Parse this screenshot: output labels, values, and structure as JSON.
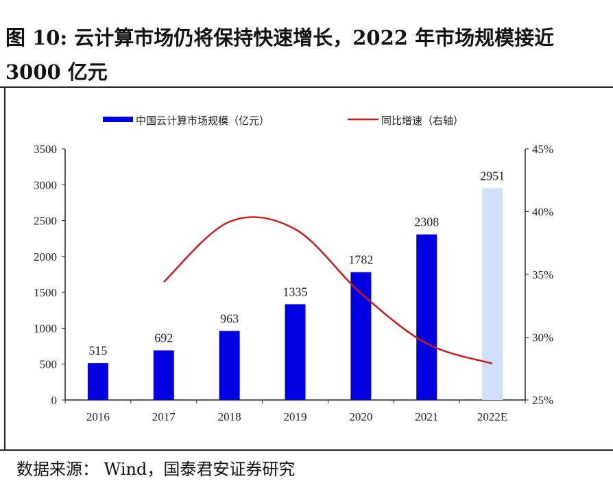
{
  "title": "图 10: 云计算市场仍将保持快速增长，2022 年市场规模接近 3000 亿元",
  "source": "数据来源：  Wind，国泰君安证券研究",
  "chart_data": {
    "type": "bar+line",
    "categories": [
      "2016",
      "2017",
      "2018",
      "2019",
      "2020",
      "2021",
      "2022E"
    ],
    "series": [
      {
        "name": "中国云计算市场规模（亿元）",
        "type": "bar",
        "axis": "left",
        "values": [
          515,
          692,
          963,
          1335,
          1782,
          2308,
          2951
        ],
        "color": "#0000e0",
        "highlight_color": "#cfe0fa",
        "data_labels": [
          "515",
          "692",
          "963",
          "1335",
          "1782",
          "2308",
          "2951"
        ]
      },
      {
        "name": "同比增速（右轴）",
        "type": "line",
        "axis": "right",
        "values": [
          null,
          34.4,
          39.2,
          38.6,
          33.5,
          29.5,
          27.9
        ],
        "color": "#cc1a1a"
      }
    ],
    "left_axis": {
      "ylim": [
        0,
        3500
      ],
      "ticks": [
        "0",
        "500",
        "1000",
        "1500",
        "2000",
        "2500",
        "3000",
        "3500"
      ]
    },
    "right_axis": {
      "ylim": [
        25,
        45
      ],
      "ticks": [
        "25%",
        "30%",
        "35%",
        "40%",
        "45%"
      ]
    },
    "legend": "top",
    "grid": false
  }
}
